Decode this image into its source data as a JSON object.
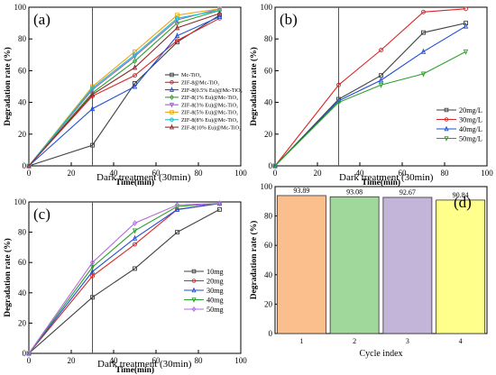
{
  "colors": {
    "axis": "#000000",
    "divider": "#555555"
  },
  "chart_data": [
    {
      "panel_label": "(a)",
      "type": "line",
      "xlabel": "Time(min)",
      "ylabel": "Degradation rate (%)",
      "xlim": [
        0,
        100
      ],
      "ylim": [
        0,
        100
      ],
      "xticks": [
        "0",
        "20",
        "40",
        "60",
        "80",
        "100"
      ],
      "yticks": [
        "0",
        "20",
        "40",
        "60",
        "80",
        "100"
      ],
      "annotation": "Dark treatment (30min)",
      "divider_x": 30,
      "legend_position": "bottom-right",
      "series": [
        {
          "name": "Mc-TiO₂",
          "color": "#404040",
          "marker": "square",
          "points": [
            [
              0,
              0
            ],
            [
              30,
              13
            ],
            [
              50,
              52
            ],
            [
              70,
              78
            ],
            [
              90,
              95
            ]
          ]
        },
        {
          "name": "ZIF-8@Mc-TiO₂",
          "color": "#d62728",
          "marker": "circle",
          "points": [
            [
              0,
              0
            ],
            [
              30,
              44
            ],
            [
              50,
              57
            ],
            [
              70,
              79
            ],
            [
              90,
              93
            ]
          ]
        },
        {
          "name": "ZIF-8(0.5% Eu)@Mc-TiO₂",
          "color": "#1f4ed8",
          "marker": "triangle",
          "points": [
            [
              0,
              0
            ],
            [
              30,
              36
            ],
            [
              50,
              50
            ],
            [
              70,
              82
            ],
            [
              90,
              94
            ]
          ]
        },
        {
          "name": "ZIF-8(1% Eu)@Mc-TiO₂",
          "color": "#2ca02c",
          "marker": "diamond",
          "points": [
            [
              0,
              0
            ],
            [
              30,
              46
            ],
            [
              50,
              66
            ],
            [
              70,
              90
            ],
            [
              90,
              98
            ]
          ]
        },
        {
          "name": "ZIF-8(3% Eu)@Mc-TiO₂",
          "color": "#9467bd",
          "marker": "triangle-down",
          "points": [
            [
              0,
              0
            ],
            [
              30,
              48
            ],
            [
              50,
              69
            ],
            [
              70,
              92
            ],
            [
              90,
              99
            ]
          ]
        },
        {
          "name": "ZIF-8(5% Eu)@Mc-TiO₂",
          "color": "#e6a817",
          "marker": "square",
          "points": [
            [
              0,
              0
            ],
            [
              30,
              50
            ],
            [
              50,
              72
            ],
            [
              70,
              95
            ],
            [
              90,
              99
            ]
          ]
        },
        {
          "name": "ZIF-8(8% Eu)@Mc-TiO₂",
          "color": "#17becf",
          "marker": "circle",
          "points": [
            [
              0,
              0
            ],
            [
              30,
              49
            ],
            [
              50,
              70
            ],
            [
              70,
              93
            ],
            [
              90,
              98
            ]
          ]
        },
        {
          "name": "ZIF-8(10% Eu)@Mc-TiO₂",
          "color": "#8c2d2d",
          "marker": "triangle",
          "points": [
            [
              0,
              0
            ],
            [
              30,
              45
            ],
            [
              50,
              62
            ],
            [
              70,
              87
            ],
            [
              90,
              96
            ]
          ]
        }
      ]
    },
    {
      "panel_label": "(b)",
      "type": "line",
      "xlabel": "Time(min)",
      "ylabel": "Degradation rate (%)",
      "xlim": [
        0,
        100
      ],
      "ylim": [
        0,
        100
      ],
      "xticks": [
        "0",
        "20",
        "40",
        "60",
        "80",
        "100"
      ],
      "yticks": [
        "0",
        "20",
        "40",
        "60",
        "80",
        "100"
      ],
      "annotation": "Dark treatment (30min)",
      "divider_x": 30,
      "legend_position": "bottom-right",
      "series": [
        {
          "name": "20mg/L",
          "color": "#404040",
          "marker": "square",
          "points": [
            [
              0,
              0
            ],
            [
              30,
              42
            ],
            [
              50,
              57
            ],
            [
              70,
              84
            ],
            [
              90,
              90
            ]
          ]
        },
        {
          "name": "30mg/L",
          "color": "#d62728",
          "marker": "circle",
          "points": [
            [
              0,
              0
            ],
            [
              30,
              51
            ],
            [
              50,
              73
            ],
            [
              70,
              97
            ],
            [
              90,
              99
            ]
          ]
        },
        {
          "name": "40mg/L",
          "color": "#1f4ed8",
          "marker": "triangle",
          "points": [
            [
              0,
              0
            ],
            [
              30,
              41
            ],
            [
              50,
              54
            ],
            [
              70,
              72
            ],
            [
              90,
              88
            ]
          ]
        },
        {
          "name": "50mg/L",
          "color": "#2ca02c",
          "marker": "triangle-down",
          "points": [
            [
              0,
              0
            ],
            [
              30,
              40
            ],
            [
              50,
              51
            ],
            [
              70,
              58
            ],
            [
              90,
              72
            ]
          ]
        }
      ]
    },
    {
      "panel_label": "(c)",
      "type": "line",
      "xlabel": "Time(min)",
      "ylabel": "Degradation rate (%)",
      "xlim": [
        0,
        100
      ],
      "ylim": [
        0,
        100
      ],
      "xticks": [
        "0",
        "20",
        "40",
        "60",
        "80",
        "100"
      ],
      "yticks": [
        "0",
        "20",
        "40",
        "60",
        "80",
        "100"
      ],
      "annotation": "Dark treatment (30min)",
      "divider_x": 30,
      "legend_position": "bottom-right",
      "series": [
        {
          "name": "10mg",
          "color": "#404040",
          "marker": "square",
          "points": [
            [
              0,
              0
            ],
            [
              30,
              37
            ],
            [
              50,
              56
            ],
            [
              70,
              80
            ],
            [
              90,
              95
            ]
          ]
        },
        {
          "name": "20mg",
          "color": "#d62728",
          "marker": "circle",
          "points": [
            [
              0,
              0
            ],
            [
              30,
              51
            ],
            [
              50,
              72
            ],
            [
              70,
              95
            ],
            [
              90,
              99
            ]
          ]
        },
        {
          "name": "30mg",
          "color": "#1f4ed8",
          "marker": "triangle",
          "points": [
            [
              0,
              0
            ],
            [
              30,
              54
            ],
            [
              50,
              76
            ],
            [
              70,
              95
            ],
            [
              90,
              99
            ]
          ]
        },
        {
          "name": "40mg",
          "color": "#2ca02c",
          "marker": "triangle-down",
          "points": [
            [
              0,
              0
            ],
            [
              30,
              57
            ],
            [
              50,
              81
            ],
            [
              70,
              97
            ],
            [
              90,
              99
            ]
          ]
        },
        {
          "name": "50mg",
          "color": "#b36ae2",
          "marker": "diamond",
          "points": [
            [
              0,
              0
            ],
            [
              30,
              60
            ],
            [
              50,
              86
            ],
            [
              70,
              98
            ],
            [
              90,
              99
            ]
          ]
        }
      ]
    },
    {
      "panel_label": "(d)",
      "type": "bar",
      "xlabel": "Cycle index",
      "ylabel": "Degradation rate (%)",
      "ylim": [
        0,
        100
      ],
      "yticks": [
        "0",
        "20",
        "40",
        "60",
        "80",
        "100"
      ],
      "categories": [
        "1",
        "2",
        "3",
        "4"
      ],
      "values": [
        93.89,
        93.08,
        92.67,
        90.84
      ],
      "value_labels": [
        "93.89",
        "93.08",
        "92.67",
        "90.84"
      ],
      "bar_colors": [
        "#fbbf8e",
        "#9fd89a",
        "#c3b4d9",
        "#ffff8c"
      ]
    }
  ]
}
